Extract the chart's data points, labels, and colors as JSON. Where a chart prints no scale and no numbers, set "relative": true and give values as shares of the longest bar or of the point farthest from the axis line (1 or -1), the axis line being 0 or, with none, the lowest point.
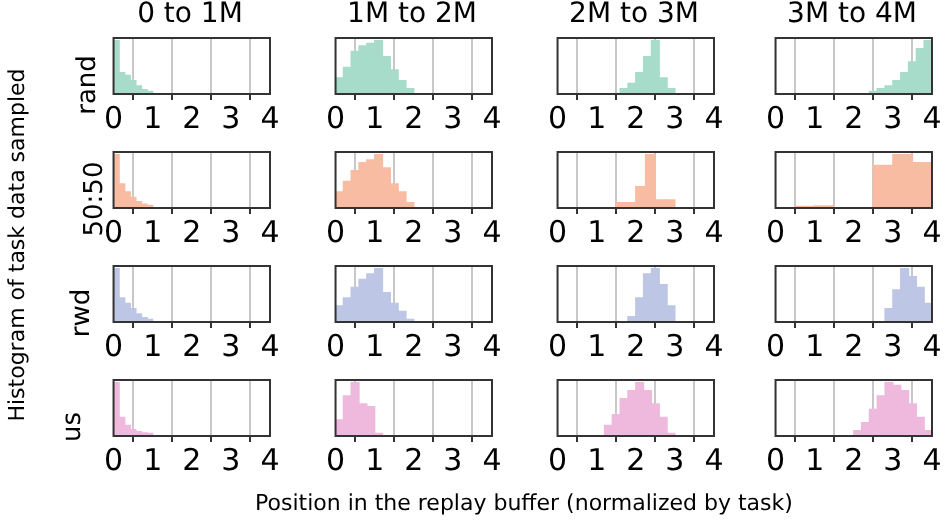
{
  "chart_data": [
    {
      "type": "bar",
      "title": "0 to 1M",
      "ylabel": "rand",
      "relative": true,
      "color": "#a6dcc9",
      "x": [
        0.071,
        0.214,
        0.357,
        0.5,
        0.643,
        0.786,
        0.929
      ],
      "values": [
        1.0,
        0.4,
        0.35,
        0.25,
        0.15,
        0.08,
        0.05
      ],
      "xlim": [
        0,
        4
      ],
      "xticks": [
        0,
        1,
        2,
        3,
        4
      ],
      "grid": "x"
    },
    {
      "type": "bar",
      "title": "1M to 2M",
      "relative": true,
      "color": "#a6dcc9",
      "x": [
        0.1,
        0.3,
        0.5,
        0.7,
        0.9,
        1.1,
        1.3,
        1.5,
        1.7,
        1.9
      ],
      "values": [
        0.3,
        0.5,
        0.8,
        0.9,
        0.95,
        1.0,
        0.7,
        0.45,
        0.25,
        0.1
      ],
      "xlim": [
        0,
        4
      ],
      "xticks": [
        0,
        1,
        2,
        3,
        4
      ],
      "grid": "x"
    },
    {
      "type": "bar",
      "title": "2M to 3M",
      "relative": true,
      "color": "#a6dcc9",
      "x": [
        1.7,
        1.9,
        2.1,
        2.3,
        2.5,
        2.7,
        2.9
      ],
      "values": [
        0.1,
        0.2,
        0.4,
        0.7,
        1.0,
        0.3,
        0.1
      ],
      "xlim": [
        0,
        4
      ],
      "xticks": [
        0,
        1,
        2,
        3,
        4
      ],
      "grid": "x"
    },
    {
      "type": "bar",
      "title": "3M to 4M",
      "relative": true,
      "color": "#a6dcc9",
      "x": [
        2.5,
        2.7,
        2.9,
        3.1,
        3.3,
        3.5,
        3.7,
        3.9
      ],
      "values": [
        0.05,
        0.1,
        0.15,
        0.25,
        0.4,
        0.6,
        0.85,
        1.0
      ],
      "xlim": [
        0,
        4
      ],
      "xticks": [
        0,
        1,
        2,
        3,
        4
      ],
      "grid": "x"
    },
    {
      "type": "bar",
      "ylabel": "50:50",
      "relative": true,
      "color": "#f8bca2",
      "x": [
        0.071,
        0.214,
        0.357,
        0.5,
        0.643,
        0.786,
        0.929
      ],
      "values": [
        1.0,
        0.45,
        0.3,
        0.2,
        0.12,
        0.07,
        0.05
      ],
      "xlim": [
        0,
        4
      ],
      "xticks": [
        0,
        1,
        2,
        3,
        4
      ],
      "grid": "x"
    },
    {
      "type": "bar",
      "relative": true,
      "color": "#f8bca2",
      "x": [
        0.1,
        0.3,
        0.5,
        0.7,
        0.9,
        1.1,
        1.3,
        1.5,
        1.7,
        1.9
      ],
      "values": [
        0.3,
        0.5,
        0.7,
        0.85,
        0.9,
        1.0,
        0.75,
        0.45,
        0.3,
        0.1
      ],
      "xlim": [
        0,
        4
      ],
      "xticks": [
        0,
        1,
        2,
        3,
        4
      ],
      "grid": "x"
    },
    {
      "type": "bar",
      "relative": true,
      "color": "#f8bca2",
      "x": [
        1.625,
        1.875,
        2.125,
        2.375,
        2.625,
        2.875
      ],
      "values": [
        0.1,
        0.1,
        0.4,
        1.0,
        0.15,
        0.15
      ],
      "xlim": [
        0,
        4
      ],
      "xticks": [
        0,
        1,
        2,
        3,
        4
      ],
      "grid": "x"
    },
    {
      "type": "bar",
      "relative": true,
      "color": "#f8bca2",
      "x": [
        0.75,
        1.25,
        2.75,
        3.25,
        3.75
      ],
      "values": [
        0.03,
        0.04,
        0.8,
        1.0,
        0.85
      ],
      "xlim": [
        0,
        4
      ],
      "xticks": [
        0,
        1,
        2,
        3,
        4
      ],
      "grid": "x"
    },
    {
      "type": "bar",
      "ylabel": "rwd",
      "relative": true,
      "color": "#bdc6e5",
      "x": [
        0.071,
        0.214,
        0.357,
        0.5,
        0.643,
        0.786,
        0.929
      ],
      "values": [
        1.0,
        0.45,
        0.35,
        0.25,
        0.15,
        0.08,
        0.05
      ],
      "xlim": [
        0,
        4
      ],
      "xticks": [
        0,
        1,
        2,
        3,
        4
      ],
      "grid": "x"
    },
    {
      "type": "bar",
      "relative": true,
      "color": "#bdc6e5",
      "x": [
        0.1,
        0.3,
        0.5,
        0.7,
        0.9,
        1.1,
        1.3,
        1.5,
        1.7,
        1.9
      ],
      "values": [
        0.3,
        0.45,
        0.65,
        0.8,
        0.9,
        1.0,
        0.55,
        0.35,
        0.2,
        0.05
      ],
      "xlim": [
        0,
        4
      ],
      "xticks": [
        0,
        1,
        2,
        3,
        4
      ],
      "grid": "x"
    },
    {
      "type": "bar",
      "relative": true,
      "color": "#bdc6e5",
      "x": [
        1.9,
        2.1,
        2.3,
        2.5,
        2.7,
        2.9
      ],
      "values": [
        0.1,
        0.45,
        0.9,
        1.0,
        0.7,
        0.3
      ],
      "xlim": [
        0,
        4
      ],
      "xticks": [
        0,
        1,
        2,
        3,
        4
      ],
      "grid": "x"
    },
    {
      "type": "bar",
      "relative": true,
      "color": "#bdc6e5",
      "x": [
        2.9,
        3.1,
        3.3,
        3.5,
        3.7,
        3.9
      ],
      "values": [
        0.25,
        0.6,
        1.0,
        0.85,
        0.65,
        0.35
      ],
      "xlim": [
        0,
        4
      ],
      "xticks": [
        0,
        1,
        2,
        3,
        4
      ],
      "grid": "x"
    },
    {
      "type": "bar",
      "ylabel": "us",
      "relative": true,
      "color": "#efb9de",
      "x": [
        0.071,
        0.214,
        0.357,
        0.5,
        0.643,
        0.786,
        0.929
      ],
      "values": [
        1.0,
        0.35,
        0.2,
        0.12,
        0.08,
        0.06,
        0.05
      ],
      "xlim": [
        0,
        4
      ],
      "xticks": [
        0,
        1,
        2,
        3,
        4
      ],
      "grid": "x"
    },
    {
      "type": "bar",
      "relative": true,
      "color": "#efb9de",
      "x": [
        0.1,
        0.3,
        0.5,
        0.7,
        0.9,
        1.1
      ],
      "values": [
        0.3,
        0.75,
        1.0,
        0.6,
        0.55,
        0.05
      ],
      "xlim": [
        0,
        4
      ],
      "xticks": [
        0,
        1,
        2,
        3,
        4
      ],
      "grid": "x"
    },
    {
      "type": "bar",
      "relative": true,
      "color": "#efb9de",
      "x": [
        1.3,
        1.5,
        1.7,
        1.9,
        2.1,
        2.3,
        2.5,
        2.7,
        2.9
      ],
      "values": [
        0.2,
        0.4,
        0.7,
        0.85,
        1.0,
        0.85,
        0.6,
        0.35,
        0.05
      ],
      "xlim": [
        0,
        4
      ],
      "xticks": [
        0,
        1,
        2,
        3,
        4
      ],
      "grid": "x"
    },
    {
      "type": "bar",
      "relative": true,
      "color": "#efb9de",
      "x": [
        2.1,
        2.3,
        2.5,
        2.7,
        2.9,
        3.1,
        3.3,
        3.5,
        3.7,
        3.9
      ],
      "values": [
        0.1,
        0.25,
        0.5,
        0.75,
        1.0,
        0.95,
        0.85,
        0.6,
        0.35,
        0.1
      ],
      "xlim": [
        0,
        4
      ],
      "xticks": [
        0,
        1,
        2,
        3,
        4
      ],
      "grid": "x"
    },
    {
      "type": "other",
      "annotations": [
        "Histogram of task data sampled",
        "Position in the replay buffer (normalized by task)"
      ]
    }
  ]
}
